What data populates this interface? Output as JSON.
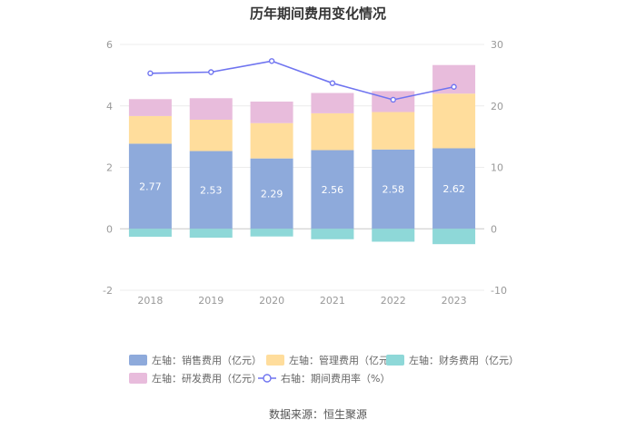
{
  "chart_data": {
    "type": "bar",
    "title": "历年期间费用变化情况",
    "categories": [
      "2018",
      "2019",
      "2020",
      "2021",
      "2022",
      "2023"
    ],
    "y_left": {
      "ticks": [
        6,
        4,
        2,
        0,
        -2
      ],
      "ylim": [
        -2,
        6
      ]
    },
    "y_right": {
      "ticks": [
        30,
        20,
        10,
        0,
        -10
      ],
      "ylim": [
        -10,
        30
      ]
    },
    "series": [
      {
        "name": "左轴：销售费用（亿元）",
        "kind": "bar",
        "axis": "left",
        "color": "#8eaadb",
        "values": [
          2.77,
          2.53,
          2.29,
          2.56,
          2.58,
          2.62
        ],
        "labels": [
          "2.77",
          "2.53",
          "2.29",
          "2.56",
          "2.58",
          "2.62"
        ]
      },
      {
        "name": "左轴：管理费用（亿元）",
        "kind": "bar",
        "axis": "left",
        "color": "#ffdd9c",
        "values": [
          0.9,
          1.02,
          1.15,
          1.2,
          1.22,
          1.78
        ]
      },
      {
        "name": "左轴：财务费用（亿元）",
        "kind": "bar",
        "axis": "left",
        "color": "#8ed8d8",
        "values": [
          -0.26,
          -0.29,
          -0.25,
          -0.34,
          -0.42,
          -0.5
        ]
      },
      {
        "name": "左轴：研发费用（亿元）",
        "kind": "bar",
        "axis": "left",
        "color": "#e8bcdc",
        "values": [
          0.55,
          0.7,
          0.7,
          0.66,
          0.68,
          0.93
        ]
      },
      {
        "name": "右轴：期间费用率（%）",
        "kind": "line",
        "axis": "right",
        "color": "#6f74f0",
        "values": [
          25.3,
          25.5,
          27.3,
          23.7,
          21.0,
          23.1
        ]
      }
    ],
    "legend_position": "bottom",
    "grid": true
  },
  "source_text": "数据来源：恒生聚源"
}
